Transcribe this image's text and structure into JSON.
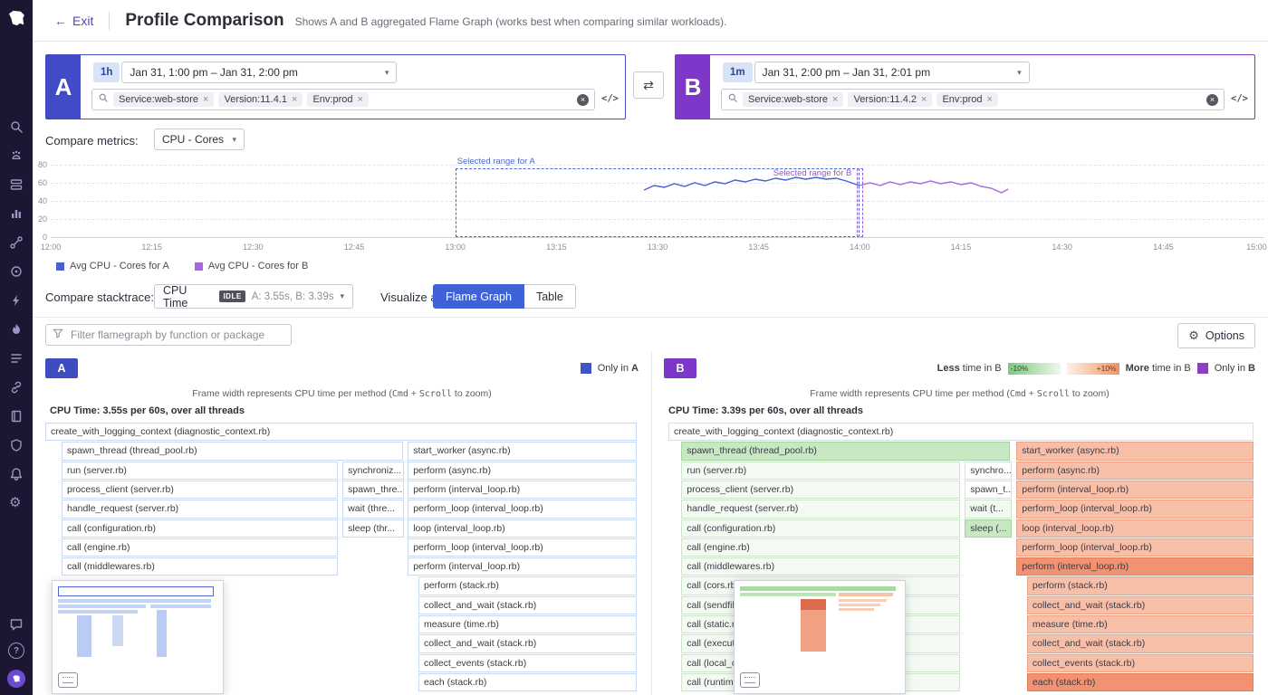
{
  "header": {
    "exit_label": "Exit",
    "title": "Profile Comparison",
    "subtitle": "Shows A and B aggregated Flame Graph (works best when comparing similar workloads)."
  },
  "profile_a": {
    "letter": "A",
    "accent": "#414bc6",
    "range_chip": "1h",
    "time_range": "Jan 31, 1:00 pm – Jan 31, 2:00 pm",
    "filters": [
      "Service:web-store",
      "Version:11.4.1",
      "Env:prod"
    ],
    "code_icon": "</>"
  },
  "profile_b": {
    "letter": "B",
    "accent": "#7d37c9",
    "range_chip": "1m",
    "time_range": "Jan 31, 2:00 pm – Jan 31, 2:01 pm",
    "filters": [
      "Service:web-store",
      "Version:11.4.2",
      "Env:prod"
    ],
    "code_icon": "</>"
  },
  "compare_metrics": {
    "label": "Compare metrics:",
    "selected": "CPU - Cores"
  },
  "chart_data": {
    "type": "line",
    "x_ticks": [
      "12:00",
      "12:15",
      "12:30",
      "12:45",
      "13:00",
      "13:15",
      "13:30",
      "13:45",
      "14:00",
      "14:15",
      "14:30",
      "14:45",
      "15:00"
    ],
    "y_ticks": [
      0,
      20,
      40,
      60,
      80
    ],
    "ylim": [
      0,
      80
    ],
    "x_span_minutes": 180,
    "grid": true,
    "legend_position": "bottom",
    "series": [
      {
        "name": "Avg CPU - Cores for A",
        "color": "#4a5fd0",
        "points": [
          [
            88,
            52
          ],
          [
            89.5,
            57
          ],
          [
            91,
            55
          ],
          [
            92.5,
            59
          ],
          [
            94,
            56
          ],
          [
            95.5,
            60
          ],
          [
            97,
            57
          ],
          [
            98.5,
            61
          ],
          [
            100,
            59
          ],
          [
            101.5,
            63
          ],
          [
            103,
            61
          ],
          [
            104.5,
            64
          ],
          [
            106,
            62
          ],
          [
            107.5,
            65
          ],
          [
            109,
            63
          ],
          [
            110.5,
            66
          ],
          [
            112,
            64
          ],
          [
            113.5,
            66
          ],
          [
            115,
            64
          ],
          [
            116.5,
            65
          ],
          [
            118,
            62
          ],
          [
            119.5,
            58
          ],
          [
            120,
            57
          ]
        ]
      },
      {
        "name": "Avg CPU - Cores for B",
        "color": "#a469d9",
        "points": [
          [
            120,
            57
          ],
          [
            121.5,
            60
          ],
          [
            123,
            57
          ],
          [
            124.5,
            61
          ],
          [
            126,
            58
          ],
          [
            127.5,
            61
          ],
          [
            129,
            59
          ],
          [
            130.5,
            62
          ],
          [
            132,
            59
          ],
          [
            133.5,
            61
          ],
          [
            135,
            58
          ],
          [
            136.5,
            60
          ],
          [
            138,
            56
          ],
          [
            139.5,
            54
          ],
          [
            141,
            49
          ],
          [
            142,
            53
          ]
        ]
      }
    ],
    "selection_a": {
      "label": "Selected range for A",
      "from_min": 60,
      "to_min": 120,
      "color": "#4a66d4"
    },
    "selection_b": {
      "label": "Selected range for B",
      "at_min": 120,
      "color": "#9257d2"
    }
  },
  "compare_stacktrace": {
    "label": "Compare stacktrace:",
    "metric": "CPU Time",
    "idle_badge": "IDLE",
    "summary": "A: 3.55s, B: 3.39s",
    "visualize_label": "Visualize as:",
    "flame_button": "Flame Graph",
    "table_button": "Table",
    "active": "Flame Graph"
  },
  "toolbar": {
    "filter_placeholder": "Filter flamegraph by function or package",
    "options_label": "Options"
  },
  "flame_a": {
    "badge": "A",
    "legend": {
      "only_prefix": "Only in ",
      "only_letter": "A",
      "only_color": "#4054c8"
    },
    "frame_note_prefix": "Frame width represents CPU time per method (",
    "kbd_cmd": "Cmd",
    "kbd_plus": " + ",
    "kbd_scroll": "Scroll",
    "frame_note_suffix": " to zoom)",
    "cpu_summary": "CPU Time: 3.55s per 60s, over all threads",
    "rows": [
      [
        {
          "col": "full",
          "text": "create_with_logging_context (diagnostic_context.rb)",
          "tone": "a"
        }
      ],
      [
        {
          "col": "leftWide",
          "text": "spawn_thread (thread_pool.rb)",
          "tone": "a"
        },
        {
          "col": "right",
          "text": "start_worker (async.rb)",
          "tone": "a"
        }
      ],
      [
        {
          "col": "left",
          "text": "run (server.rb)",
          "tone": "a"
        },
        {
          "col": "mid",
          "text": "synchroniz...",
          "tone": "a"
        },
        {
          "col": "right",
          "text": "perform (async.rb)",
          "tone": "a"
        }
      ],
      [
        {
          "col": "left",
          "text": "process_client (server.rb)",
          "tone": "a"
        },
        {
          "col": "mid",
          "text": "spawn_thre...",
          "tone": "a"
        },
        {
          "col": "right",
          "text": "perform (interval_loop.rb)",
          "tone": "a"
        }
      ],
      [
        {
          "col": "left",
          "text": "handle_request (server.rb)",
          "tone": "a"
        },
        {
          "col": "mid",
          "text": "wait (thre...",
          "tone": "a"
        },
        {
          "col": "right",
          "text": "perform_loop (interval_loop.rb)",
          "tone": "a"
        }
      ],
      [
        {
          "col": "left",
          "text": "call (configuration.rb)",
          "tone": "a"
        },
        {
          "col": "mid",
          "text": "sleep (thr...",
          "tone": "a"
        },
        {
          "col": "right",
          "text": "loop (interval_loop.rb)",
          "tone": "a"
        }
      ],
      [
        {
          "col": "left",
          "text": "call (engine.rb)",
          "tone": "a"
        },
        {
          "col": "right",
          "text": "perform_loop (interval_loop.rb)",
          "tone": "a"
        }
      ],
      [
        {
          "col": "left",
          "text": "call (middlewares.rb)",
          "tone": "a"
        },
        {
          "col": "right",
          "text": "perform (interval_loop.rb)",
          "tone": "a"
        }
      ],
      [
        {
          "col": "rightIndent",
          "text": "perform (stack.rb)",
          "tone": "a"
        }
      ],
      [
        {
          "col": "rightIndent",
          "text": "collect_and_wait (stack.rb)",
          "tone": "a"
        }
      ],
      [
        {
          "col": "rightIndent",
          "text": "measure (time.rb)",
          "tone": "a"
        }
      ],
      [
        {
          "col": "rightIndent",
          "text": "collect_and_wait (stack.rb)",
          "tone": "a"
        }
      ],
      [
        {
          "col": "rightIndent",
          "text": "collect_events (stack.rb)",
          "tone": "a"
        }
      ],
      [
        {
          "col": "rightIndent",
          "text": "each (stack.rb)",
          "tone": "a"
        }
      ]
    ]
  },
  "flame_b": {
    "badge": "B",
    "legend": {
      "less_strong": "Less",
      "less_rest": " time in B",
      "minus_pct": "-10%",
      "plus_pct": "+10%",
      "more_strong": "More",
      "more_rest": " time in B",
      "only_prefix": "Only in ",
      "only_letter": "B",
      "only_color": "#8a3fc6"
    },
    "frame_note_prefix": "Frame width represents CPU time per method (",
    "kbd_cmd": "Cmd",
    "kbd_plus": " + ",
    "kbd_scroll": "Scroll",
    "frame_note_suffix": " to zoom)",
    "cpu_summary": "CPU Time: 3.39s per 60s, over all threads",
    "rows": [
      [
        {
          "col": "full",
          "text": "create_with_logging_context (diagnostic_context.rb)",
          "tone": "neutral"
        }
      ],
      [
        {
          "col": "leftWide",
          "text": "spawn_thread (thread_pool.rb)",
          "tone": "green"
        },
        {
          "col": "right",
          "text": "start_worker (async.rb)",
          "tone": "salmon"
        }
      ],
      [
        {
          "col": "left",
          "text": "run (server.rb)",
          "tone": "greenlight"
        },
        {
          "col": "mid",
          "text": "synchro...",
          "tone": "neutral"
        },
        {
          "col": "right",
          "text": "perform (async.rb)",
          "tone": "salmon"
        }
      ],
      [
        {
          "col": "left",
          "text": "process_client (server.rb)",
          "tone": "greenlight"
        },
        {
          "col": "mid",
          "text": "spawn_t...",
          "tone": "neutral"
        },
        {
          "col": "right",
          "text": "perform (interval_loop.rb)",
          "tone": "salmon"
        }
      ],
      [
        {
          "col": "left",
          "text": "handle_request (server.rb)",
          "tone": "greenlight"
        },
        {
          "col": "mid",
          "text": "wait (t...",
          "tone": "greenlight"
        },
        {
          "col": "right",
          "text": "perform_loop (interval_loop.rb)",
          "tone": "salmon"
        }
      ],
      [
        {
          "col": "left",
          "text": "call (configuration.rb)",
          "tone": "greenlight"
        },
        {
          "col": "mid",
          "text": "sleep (...",
          "tone": "green"
        },
        {
          "col": "right",
          "text": "loop (interval_loop.rb)",
          "tone": "salmon"
        }
      ],
      [
        {
          "col": "left",
          "text": "call (engine.rb)",
          "tone": "greenlight"
        },
        {
          "col": "right",
          "text": "perform_loop (interval_loop.rb)",
          "tone": "salmon"
        }
      ],
      [
        {
          "col": "left",
          "text": "call (middlewares.rb)",
          "tone": "greenlight"
        },
        {
          "col": "right",
          "text": "perform (interval_loop.rb)",
          "tone": "orange"
        }
      ],
      [
        {
          "col": "left",
          "text": "call (cors.rb)",
          "tone": "greenlight"
        },
        {
          "col": "rightIndent",
          "text": "perform (stack.rb)",
          "tone": "salmon"
        }
      ],
      [
        {
          "col": "left",
          "text": "call (sendfile.rb)",
          "tone": "greenlight"
        },
        {
          "col": "rightIndent",
          "text": "collect_and_wait (stack.rb)",
          "tone": "salmon"
        }
      ],
      [
        {
          "col": "left",
          "text": "call (static.rb)",
          "tone": "greenlight"
        },
        {
          "col": "rightIndent",
          "text": "measure (time.rb)",
          "tone": "salmon"
        }
      ],
      [
        {
          "col": "left",
          "text": "call (executor.rb)",
          "tone": "greenlight"
        },
        {
          "col": "rightIndent",
          "text": "collect_and_wait (stack.rb)",
          "tone": "salmon"
        }
      ],
      [
        {
          "col": "left",
          "text": "call (local_cache.rb)",
          "tone": "greenlight"
        },
        {
          "col": "rightIndent",
          "text": "collect_events (stack.rb)",
          "tone": "salmon"
        }
      ],
      [
        {
          "col": "left",
          "text": "call (runtime.rb)",
          "tone": "greenlight"
        },
        {
          "col": "rightIndent",
          "text": "each (stack.rb)",
          "tone": "orange"
        }
      ]
    ]
  },
  "sidebar": {
    "help_glyph": "?"
  }
}
